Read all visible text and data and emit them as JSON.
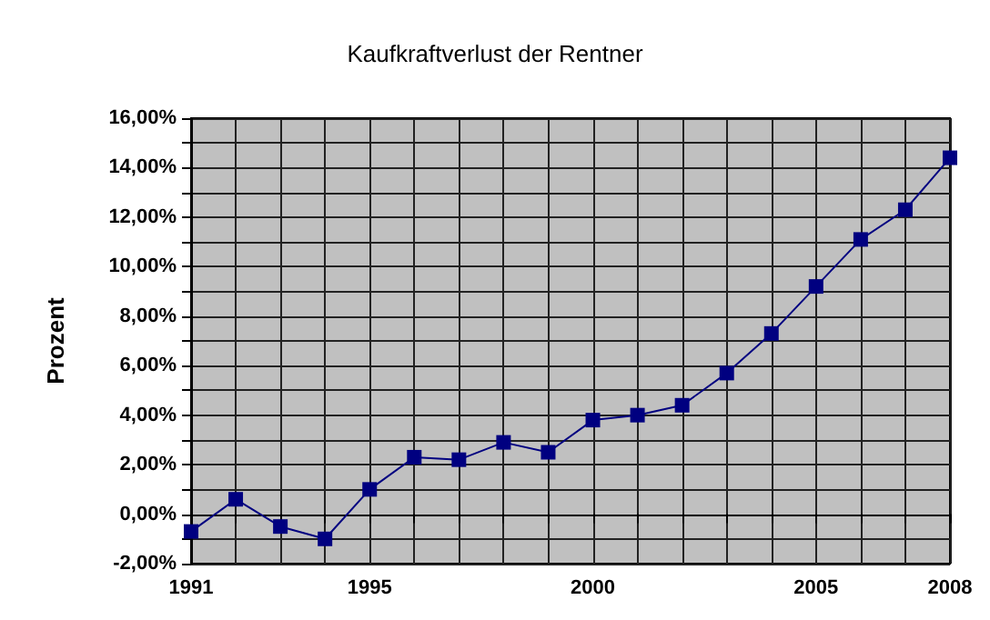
{
  "chart_data": {
    "type": "line",
    "title": "Kaufkraftverlust der Rentner",
    "ylabel": "Prozent",
    "x": [
      1991,
      1992,
      1993,
      1994,
      1995,
      1996,
      1997,
      1998,
      1999,
      2000,
      2001,
      2002,
      2003,
      2004,
      2005,
      2006,
      2007,
      2008
    ],
    "series": [
      {
        "color": "#000080",
        "values": [
          -0.7,
          0.6,
          -0.5,
          -1.0,
          1.0,
          2.3,
          2.2,
          2.9,
          2.5,
          3.8,
          4.0,
          4.4,
          5.7,
          7.3,
          9.2,
          11.1,
          12.3,
          14.4
        ]
      }
    ],
    "xlim": [
      1991,
      2008
    ],
    "xticks": [
      1991,
      {
        "value": 1992,
        "label": null
      },
      {
        "value": 1993,
        "label": null
      },
      {
        "value": 1994,
        "label": null
      },
      1995,
      {
        "value": 1996,
        "label": null
      },
      {
        "value": 1997,
        "label": null
      },
      {
        "value": 1998,
        "label": null
      },
      {
        "value": 1999,
        "label": null
      },
      2000,
      {
        "value": 2001,
        "label": null
      },
      {
        "value": 2002,
        "label": null
      },
      {
        "value": 2003,
        "label": null
      },
      {
        "value": 2004,
        "label": null
      },
      2005,
      {
        "value": 2006,
        "label": null
      },
      {
        "value": 2007,
        "label": null
      },
      2008
    ],
    "ylim": [
      -2,
      16
    ],
    "yticks": [
      {
        "value": -2,
        "label": "-2,00%"
      },
      {
        "value": -1,
        "label": null
      },
      {
        "value": 0,
        "label": "0,00%"
      },
      {
        "value": 1,
        "label": null
      },
      {
        "value": 2,
        "label": "2,00%"
      },
      {
        "value": 3,
        "label": null
      },
      {
        "value": 4,
        "label": "4,00%"
      },
      {
        "value": 5,
        "label": null
      },
      {
        "value": 6,
        "label": "6,00%"
      },
      {
        "value": 7,
        "label": null
      },
      {
        "value": 8,
        "label": "8,00%"
      },
      {
        "value": 9,
        "label": null
      },
      {
        "value": 10,
        "label": "10,00%"
      },
      {
        "value": 11,
        "label": null
      },
      {
        "value": 12,
        "label": "12,00%"
      },
      {
        "value": 13,
        "label": null
      },
      {
        "value": 14,
        "label": "14,00%"
      },
      {
        "value": 15,
        "label": null
      },
      {
        "value": 16,
        "label": "16,00%"
      }
    ],
    "grid": true,
    "marker": "square",
    "line_style": "solid"
  }
}
